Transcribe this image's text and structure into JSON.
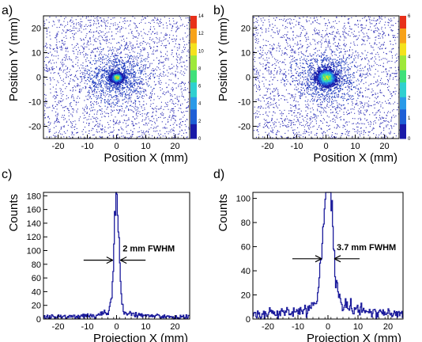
{
  "chart_data": [
    {
      "panel": "a)",
      "type": "heatmap",
      "xlabel": "Position X (mm)",
      "ylabel": "Position Y (mm)",
      "xlim": [
        -25,
        25
      ],
      "ylim": [
        -25,
        25
      ],
      "xticks": [
        -20,
        -10,
        0,
        10,
        20
      ],
      "yticks": [
        -20,
        -10,
        0,
        10,
        20
      ],
      "zlim": [
        0,
        14
      ],
      "zticks": [
        0,
        2,
        4,
        6,
        8,
        10,
        12,
        14
      ],
      "peak": {
        "x": 0,
        "y": 0,
        "sigma_mm": 0.9,
        "max_counts": 14
      },
      "halo": {
        "sigma_mm": 5
      },
      "background_hits": 2200,
      "colormap": [
        "#1a1aa8",
        "#1f5fd6",
        "#2a9ae8",
        "#2fd0d0",
        "#3fe07a",
        "#9ee83a",
        "#f4e21c",
        "#f7a21a",
        "#e8301a"
      ]
    },
    {
      "panel": "b)",
      "type": "heatmap",
      "xlabel": "Position X (mm)",
      "ylabel": "Position Y (mm)",
      "xlim": [
        -25,
        25
      ],
      "ylim": [
        -25,
        25
      ],
      "xticks": [
        -20,
        -10,
        0,
        10,
        20
      ],
      "yticks": [
        -20,
        -10,
        0,
        10,
        20
      ],
      "zlim": [
        0,
        6
      ],
      "zticks": [
        0,
        1,
        2,
        3,
        4,
        5,
        6
      ],
      "peak": {
        "x": 0,
        "y": 0,
        "sigma_mm": 1.6,
        "max_counts": 5
      },
      "halo": {
        "sigma_mm": 5
      },
      "background_hits": 2200,
      "colormap": [
        "#1a1aa8",
        "#1f5fd6",
        "#2a9ae8",
        "#2fd0d0",
        "#3fe07a",
        "#9ee83a",
        "#f4e21c",
        "#f7a21a",
        "#e8301a"
      ]
    },
    {
      "panel": "c)",
      "type": "line",
      "xlabel": "Projection X (mm)",
      "ylabel": "Counts",
      "xlim": [
        -25,
        25
      ],
      "ylim": [
        0,
        185
      ],
      "xticks": [
        -20,
        -10,
        0,
        10,
        20
      ],
      "yticks": [
        0,
        20,
        40,
        60,
        80,
        100,
        120,
        140,
        160,
        180
      ],
      "annotation": "2 mm FWHM",
      "arrow_y": 86,
      "fwhm_half_mm": 1.0,
      "series": [
        {
          "color": "#1c1c9c",
          "peak": 175,
          "sigma_mm": 0.85,
          "tail_amp": 11,
          "tail_width_mm": 5.5,
          "floor": 3
        }
      ]
    },
    {
      "panel": "d)",
      "type": "line",
      "xlabel": "Projection X (mm)",
      "ylabel": "Counts",
      "xlim": [
        -25,
        25
      ],
      "ylim": [
        0,
        105
      ],
      "xticks": [
        -20,
        -10,
        0,
        10,
        20
      ],
      "yticks": [
        0,
        20,
        40,
        60,
        80,
        100
      ],
      "annotation": "3.7 mm FWHM",
      "arrow_y": 50,
      "fwhm_half_mm": 1.85,
      "series": [
        {
          "color": "#1c1c9c",
          "peak": 98,
          "sigma_mm": 1.55,
          "tail_amp": 17,
          "tail_width_mm": 6,
          "floor": 4
        }
      ]
    }
  ]
}
